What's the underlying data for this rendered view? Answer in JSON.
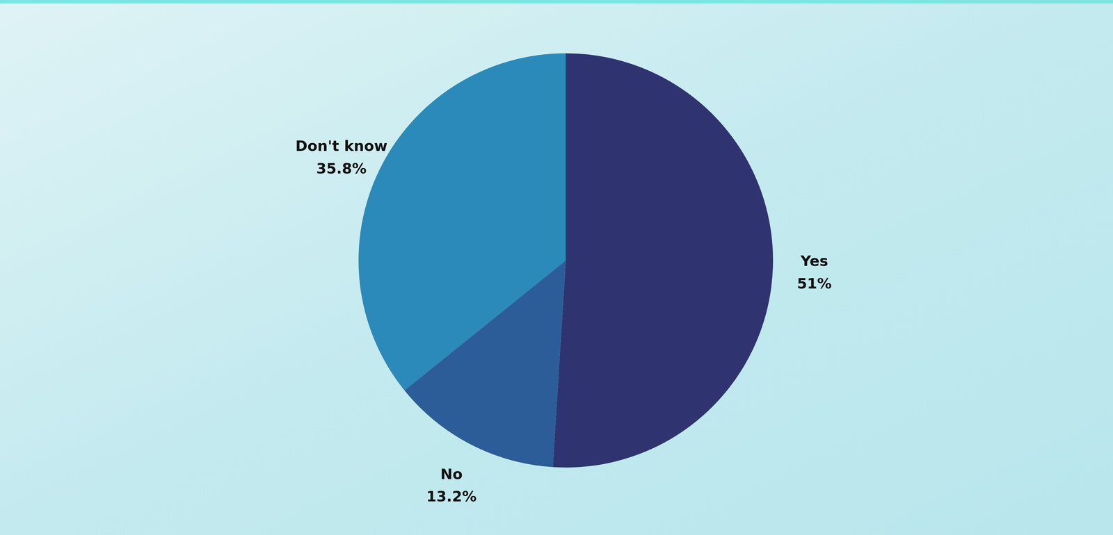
{
  "chart_data": {
    "type": "pie",
    "categories": [
      "Yes",
      "No",
      "Don't know"
    ],
    "values": [
      51,
      13.2,
      35.8
    ],
    "value_labels": [
      "51%",
      "13.2%",
      "35.8%"
    ],
    "colors": [
      "#2f3470",
      "#2d5d98",
      "#2b8aba"
    ],
    "data_labels": true
  }
}
